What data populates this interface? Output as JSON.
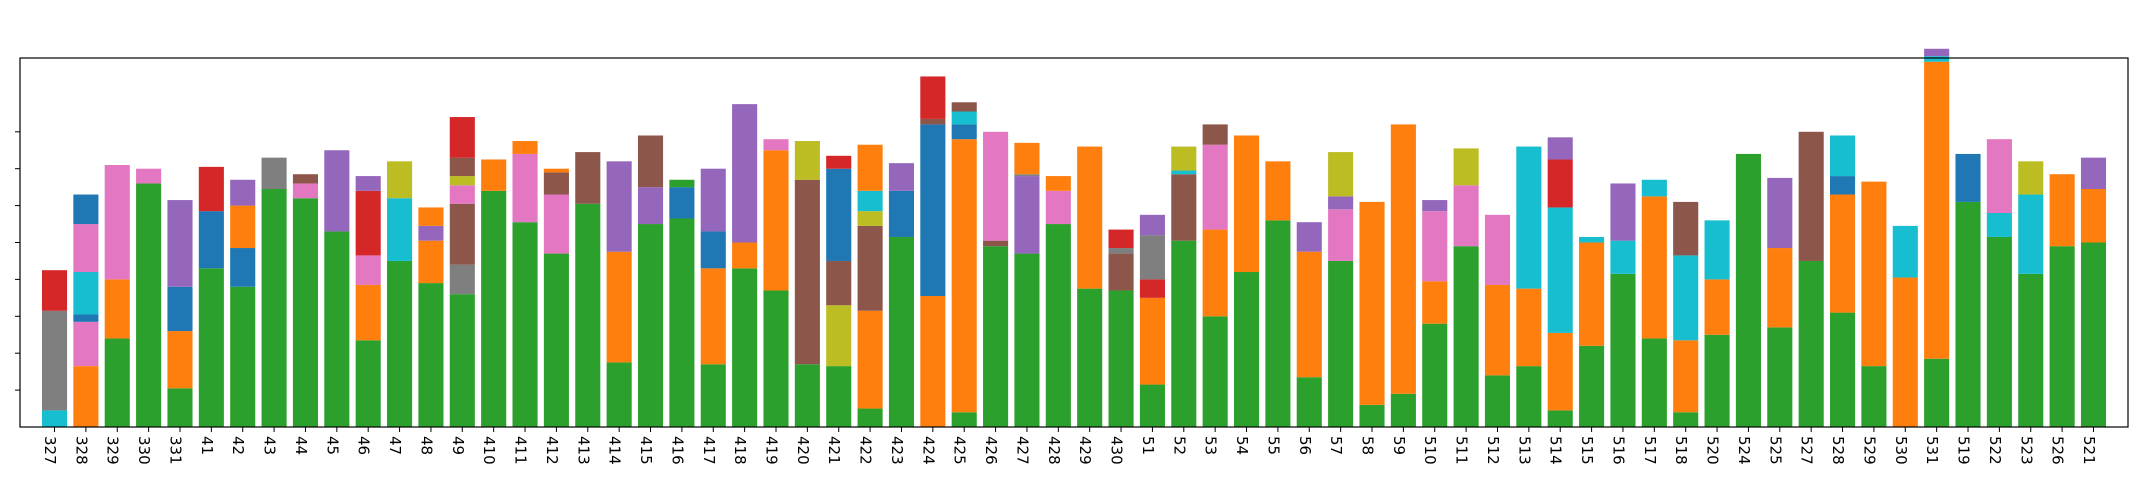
{
  "chart_data": {
    "type": "bar",
    "stacked": true,
    "title": "",
    "xlabel": "",
    "ylabel": "",
    "ylim": [
      0,
      1.0
    ],
    "y_ticks": [
      0.1,
      0.2,
      0.3,
      0.4,
      0.5,
      0.6,
      0.7,
      0.8
    ],
    "y_tick_labels_visible": false,
    "grid": false,
    "legend": "none",
    "categories": [
      "327",
      "328",
      "329",
      "330",
      "331",
      "41",
      "42",
      "43",
      "44",
      "45",
      "46",
      "47",
      "48",
      "49",
      "410",
      "411",
      "412",
      "413",
      "414",
      "415",
      "416",
      "417",
      "418",
      "419",
      "420",
      "421",
      "422",
      "423",
      "424",
      "425",
      "426",
      "427",
      "428",
      "429",
      "430",
      "51",
      "52",
      "53",
      "54",
      "55",
      "56",
      "57",
      "58",
      "59",
      "510",
      "511",
      "512",
      "513",
      "514",
      "515",
      "516",
      "517",
      "518",
      "520",
      "524",
      "525",
      "527",
      "528",
      "529",
      "530",
      "531",
      "519",
      "522",
      "523",
      "526",
      "521"
    ],
    "stacks": [
      [
        [
          "cyan",
          0.045
        ],
        [
          "gray",
          0.27
        ],
        [
          "red",
          0.11
        ]
      ],
      [
        [
          "orange",
          0.165
        ],
        [
          "pink",
          0.12
        ],
        [
          "blue",
          0.02
        ],
        [
          "cyan",
          0.115
        ],
        [
          "pink",
          0.13
        ],
        [
          "blue",
          0.08
        ]
      ],
      [
        [
          "green",
          0.24
        ],
        [
          "orange",
          0.16
        ],
        [
          "pink",
          0.31
        ]
      ],
      [
        [
          "green",
          0.66
        ],
        [
          "pink",
          0.04
        ]
      ],
      [
        [
          "green",
          0.105
        ],
        [
          "orange",
          0.155
        ],
        [
          "blue",
          0.12
        ],
        [
          "purple",
          0.235
        ]
      ],
      [
        [
          "green",
          0.43
        ],
        [
          "blue",
          0.155
        ],
        [
          "red",
          0.12
        ]
      ],
      [
        [
          "green",
          0.38
        ],
        [
          "blue",
          0.105
        ],
        [
          "orange",
          0.115
        ],
        [
          "purple",
          0.07
        ]
      ],
      [
        [
          "green",
          0.645
        ],
        [
          "gray",
          0.085
        ]
      ],
      [
        [
          "green",
          0.62
        ],
        [
          "pink",
          0.04
        ],
        [
          "brown",
          0.025
        ]
      ],
      [
        [
          "green",
          0.53
        ],
        [
          "purple",
          0.22
        ]
      ],
      [
        [
          "green",
          0.235
        ],
        [
          "orange",
          0.15
        ],
        [
          "pink",
          0.08
        ],
        [
          "red",
          0.175
        ],
        [
          "purple",
          0.04
        ]
      ],
      [
        [
          "green",
          0.45
        ],
        [
          "cyan",
          0.17
        ],
        [
          "olive",
          0.1
        ]
      ],
      [
        [
          "green",
          0.39
        ],
        [
          "orange",
          0.115
        ],
        [
          "purple",
          0.04
        ],
        [
          "orange",
          0.05
        ]
      ],
      [
        [
          "green",
          0.36
        ],
        [
          "gray",
          0.08
        ],
        [
          "brown",
          0.165
        ],
        [
          "pink",
          0.05
        ],
        [
          "olive",
          0.025
        ],
        [
          "brown",
          0.05
        ],
        [
          "red",
          0.11
        ]
      ],
      [
        [
          "green",
          0.64
        ],
        [
          "orange",
          0.085
        ]
      ],
      [
        [
          "green",
          0.555
        ],
        [
          "pink",
          0.185
        ],
        [
          "orange",
          0.035
        ]
      ],
      [
        [
          "green",
          0.47
        ],
        [
          "pink",
          0.16
        ],
        [
          "brown",
          0.06
        ],
        [
          "orange",
          0.01
        ]
      ],
      [
        [
          "green",
          0.605
        ],
        [
          "brown",
          0.14
        ]
      ],
      [
        [
          "green",
          0.175
        ],
        [
          "orange",
          0.3
        ],
        [
          "purple",
          0.245
        ]
      ],
      [
        [
          "green",
          0.55
        ],
        [
          "purple",
          0.1
        ],
        [
          "brown",
          0.14
        ]
      ],
      [
        [
          "green",
          0.565
        ],
        [
          "blue",
          0.085
        ],
        [
          "green",
          0.02
        ]
      ],
      [
        [
          "green",
          0.17
        ],
        [
          "orange",
          0.26
        ],
        [
          "blue",
          0.1
        ],
        [
          "purple",
          0.17
        ]
      ],
      [
        [
          "green",
          0.43
        ],
        [
          "orange",
          0.07
        ],
        [
          "purple",
          0.375
        ]
      ],
      [
        [
          "green",
          0.37
        ],
        [
          "orange",
          0.38
        ],
        [
          "pink",
          0.03
        ]
      ],
      [
        [
          "green",
          0.17
        ],
        [
          "brown",
          0.5
        ],
        [
          "olive",
          0.105
        ]
      ],
      [
        [
          "green",
          0.165
        ],
        [
          "olive",
          0.165
        ],
        [
          "brown",
          0.12
        ],
        [
          "blue",
          0.25
        ],
        [
          "red",
          0.035
        ]
      ],
      [
        [
          "green",
          0.05
        ],
        [
          "orange",
          0.265
        ],
        [
          "brown",
          0.23
        ],
        [
          "olive",
          0.04
        ],
        [
          "cyan",
          0.055
        ],
        [
          "orange",
          0.125
        ]
      ],
      [
        [
          "green",
          0.515
        ],
        [
          "blue",
          0.125
        ],
        [
          "purple",
          0.075
        ]
      ],
      [
        [
          "orange",
          0.355
        ],
        [
          "blue",
          0.465
        ],
        [
          "brown",
          0.015
        ],
        [
          "red",
          0.115
        ]
      ],
      [
        [
          "green",
          0.04
        ],
        [
          "orange",
          0.74
        ],
        [
          "blue",
          0.04
        ],
        [
          "cyan",
          0.035
        ],
        [
          "brown",
          0.025
        ]
      ],
      [
        [
          "green",
          0.49
        ],
        [
          "brown",
          0.015
        ],
        [
          "pink",
          0.295
        ]
      ],
      [
        [
          "green",
          0.47
        ],
        [
          "purple",
          0.21
        ],
        [
          "gray",
          0.005
        ],
        [
          "orange",
          0.085
        ]
      ],
      [
        [
          "green",
          0.55
        ],
        [
          "pink",
          0.09
        ],
        [
          "orange",
          0.04
        ]
      ],
      [
        [
          "green",
          0.375
        ],
        [
          "orange",
          0.385
        ]
      ],
      [
        [
          "green",
          0.37
        ],
        [
          "brown",
          0.1
        ],
        [
          "gray",
          0.015
        ],
        [
          "red",
          0.05
        ]
      ],
      [
        [
          "green",
          0.115
        ],
        [
          "orange",
          0.235
        ],
        [
          "red",
          0.05
        ],
        [
          "gray",
          0.12
        ],
        [
          "purple",
          0.055
        ]
      ],
      [
        [
          "green",
          0.505
        ],
        [
          "brown",
          0.18
        ],
        [
          "cyan",
          0.01
        ],
        [
          "olive",
          0.065
        ]
      ],
      [
        [
          "green",
          0.3
        ],
        [
          "orange",
          0.235
        ],
        [
          "pink",
          0.23
        ],
        [
          "brown",
          0.055
        ]
      ],
      [
        [
          "green",
          0.42
        ],
        [
          "orange",
          0.37
        ]
      ],
      [
        [
          "green",
          0.56
        ],
        [
          "orange",
          0.16
        ]
      ],
      [
        [
          "green",
          0.135
        ],
        [
          "orange",
          0.34
        ],
        [
          "purple",
          0.08
        ]
      ],
      [
        [
          "green",
          0.45
        ],
        [
          "pink",
          0.14
        ],
        [
          "purple",
          0.035
        ],
        [
          "olive",
          0.12
        ]
      ],
      [
        [
          "green",
          0.06
        ],
        [
          "orange",
          0.55
        ]
      ],
      [
        [
          "green",
          0.09
        ],
        [
          "orange",
          0.73
        ]
      ],
      [
        [
          "green",
          0.28
        ],
        [
          "orange",
          0.115
        ],
        [
          "pink",
          0.19
        ],
        [
          "purple",
          0.03
        ]
      ],
      [
        [
          "green",
          0.49
        ],
        [
          "pink",
          0.165
        ],
        [
          "olive",
          0.1
        ]
      ],
      [
        [
          "green",
          0.14
        ],
        [
          "orange",
          0.245
        ],
        [
          "pink",
          0.19
        ]
      ],
      [
        [
          "green",
          0.165
        ],
        [
          "orange",
          0.21
        ],
        [
          "cyan",
          0.385
        ]
      ],
      [
        [
          "green",
          0.045
        ],
        [
          "orange",
          0.21
        ],
        [
          "cyan",
          0.34
        ],
        [
          "red",
          0.13
        ],
        [
          "purple",
          0.06
        ]
      ],
      [
        [
          "green",
          0.22
        ],
        [
          "orange",
          0.28
        ],
        [
          "cyan",
          0.015
        ]
      ],
      [
        [
          "green",
          0.415
        ],
        [
          "cyan",
          0.09
        ],
        [
          "purple",
          0.155
        ]
      ],
      [
        [
          "green",
          0.24
        ],
        [
          "orange",
          0.385
        ],
        [
          "cyan",
          0.045
        ]
      ],
      [
        [
          "green",
          0.04
        ],
        [
          "orange",
          0.195
        ],
        [
          "cyan",
          0.23
        ],
        [
          "brown",
          0.145
        ]
      ],
      [
        [
          "green",
          0.25
        ],
        [
          "orange",
          0.15
        ],
        [
          "cyan",
          0.16
        ]
      ],
      [
        [
          "green",
          0.74
        ]
      ],
      [
        [
          "green",
          0.27
        ],
        [
          "orange",
          0.215
        ],
        [
          "purple",
          0.19
        ]
      ],
      [
        [
          "green",
          0.45
        ],
        [
          "brown",
          0.35
        ]
      ],
      [
        [
          "green",
          0.31
        ],
        [
          "orange",
          0.32
        ],
        [
          "blue",
          0.05
        ],
        [
          "cyan",
          0.11
        ]
      ],
      [
        [
          "green",
          0.165
        ],
        [
          "orange",
          0.5
        ]
      ],
      [
        [
          "orange",
          0.405
        ],
        [
          "cyan",
          0.14
        ]
      ],
      [
        [
          "green",
          0.185
        ],
        [
          "orange",
          0.805
        ],
        [
          "cyan",
          0.015
        ],
        [
          "purple",
          0.02
        ]
      ],
      [
        [
          "green",
          0.61
        ],
        [
          "blue",
          0.13
        ]
      ],
      [
        [
          "green",
          0.515
        ],
        [
          "cyan",
          0.065
        ],
        [
          "pink",
          0.2
        ]
      ],
      [
        [
          "green",
          0.415
        ],
        [
          "cyan",
          0.215
        ],
        [
          "olive",
          0.09
        ]
      ],
      [
        [
          "green",
          0.49
        ],
        [
          "orange",
          0.195
        ]
      ],
      [
        [
          "green",
          0.5
        ],
        [
          "orange",
          0.145
        ],
        [
          "purple",
          0.085
        ]
      ]
    ]
  },
  "colors": {
    "blue": "#1f77b4",
    "orange": "#ff7f0e",
    "green": "#2ca02c",
    "red": "#d62728",
    "purple": "#9467bd",
    "brown": "#8c564b",
    "pink": "#e377c2",
    "gray": "#7f7f7f",
    "olive": "#bcbd22",
    "cyan": "#17becf"
  }
}
